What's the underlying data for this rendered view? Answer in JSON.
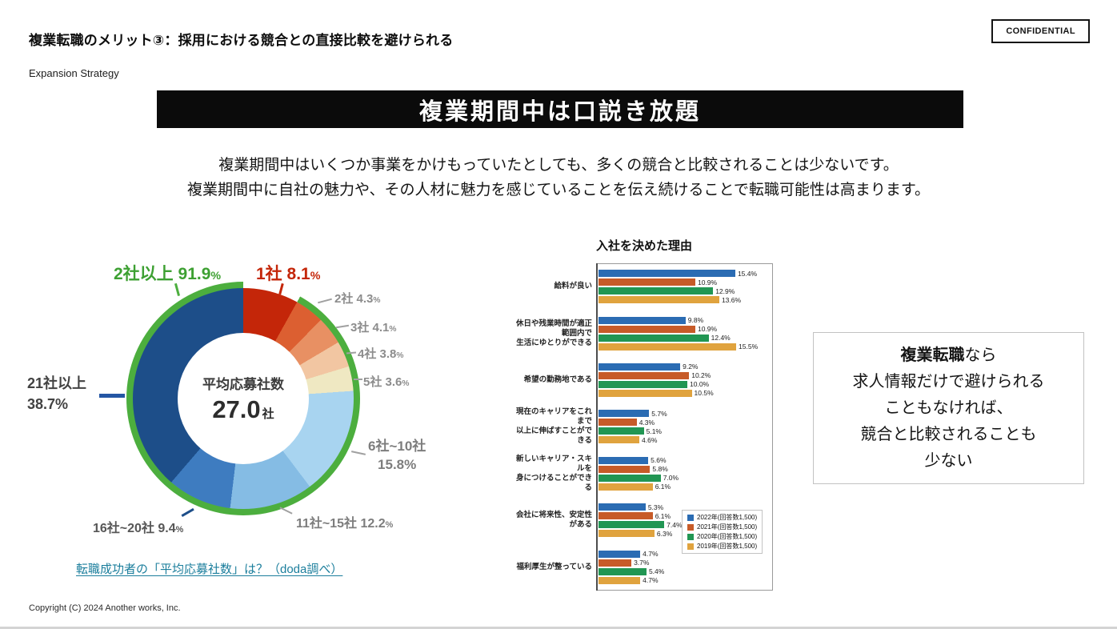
{
  "header": {
    "title": "複業転職のメリット③：採用における競合との直接比較を避けられる",
    "confidential_label": "CONFIDENTIAL",
    "subtitle": "Expansion Strategy"
  },
  "banner": {
    "text": "複業期間中は口説き放題"
  },
  "intro": {
    "line1": "複業期間中はいくつか事業をかけもっていたとしても、多くの競合と比較されることは少ないです。",
    "line2": "複業期間中に自社の魅力や、その人材に魅力を感じていることを伝え続けることで転職可能性は高まります。"
  },
  "donut": {
    "center_label": "平均応募社数",
    "center_value": "27.0",
    "center_unit": "社",
    "callouts": {
      "green": {
        "text": "2社以上 91.9",
        "unit": "%"
      },
      "red": {
        "text": "1社 8.1",
        "unit": "%"
      },
      "c2": {
        "text": "2社 4.3",
        "unit": "%"
      },
      "c3": {
        "text": "3社 4.1",
        "unit": "%"
      },
      "c4": {
        "text": "4社 3.8",
        "unit": "%"
      },
      "c5": {
        "text": "5社 3.6",
        "unit": "%"
      },
      "c6_10_line1": "6社~10社",
      "c6_10_line2": "15.8%",
      "c11_15": {
        "text": "11社~15社 12.2",
        "unit": "%"
      },
      "c16_20": {
        "text": "16社~20社 9.4",
        "unit": "%"
      },
      "c21_line1": "21社以上",
      "c21_line2": "38.7%"
    },
    "source_link": "転職成功者の「平均応募社数」は？（doda調べ）"
  },
  "callout_box": {
    "line1_bold": "複業転職",
    "line1_rest": "なら",
    "line2": "求人情報だけで避けられる",
    "line3": "こともなければ、",
    "line4": "競合と比較されることも",
    "line5": "少ない"
  },
  "footer": {
    "copyright": "Copyright (C) 2024 Another works, Inc."
  },
  "chart_data": [
    {
      "type": "pie",
      "title": "平均応募社数 27.0社",
      "labels": [
        "1社",
        "2社",
        "3社",
        "4社",
        "5社",
        "6社~10社",
        "11社~15社",
        "16社~20社",
        "21社以上"
      ],
      "values": [
        8.1,
        4.3,
        4.1,
        3.8,
        3.6,
        15.8,
        12.2,
        9.4,
        38.7
      ],
      "colors": [
        "#c42609",
        "#dc5f31",
        "#e89063",
        "#f2c6a2",
        "#efe8c2",
        "#a8d4f0",
        "#85bce4",
        "#3e7cc0",
        "#1d4e89"
      ],
      "ring": {
        "label": "2社以上",
        "value": 91.9,
        "color": "#4cae3e"
      },
      "donut_hole": true,
      "source": "転職成功者の「平均応募社数」は？（doda調べ）"
    },
    {
      "type": "bar",
      "orientation": "horizontal",
      "title": "入社を決めた理由",
      "categories": [
        "給料が良い",
        "休日や残業時間が適正範囲内で\n生活にゆとりができる",
        "希望の勤務地である",
        "現在のキャリアをこれまで\n以上に伸ばすことができる",
        "新しいキャリア・スキルを\n身につけることができる",
        "会社に将来性、安定性がある",
        "福利厚生が整っている"
      ],
      "series": [
        {
          "name": "2022年(回答数1,500)",
          "color": "#2b6cb3",
          "values": [
            15.4,
            9.8,
            9.2,
            5.7,
            5.6,
            5.3,
            4.7
          ]
        },
        {
          "name": "2021年(回答数1,500)",
          "color": "#c75b28",
          "values": [
            10.9,
            10.9,
            10.2,
            4.3,
            5.8,
            6.1,
            3.7
          ]
        },
        {
          "name": "2020年(回答数1,500)",
          "color": "#219653",
          "values": [
            12.9,
            12.4,
            10.0,
            5.1,
            7.0,
            7.4,
            5.4
          ]
        },
        {
          "name": "2019年(回答数1,500)",
          "color": "#e0a33e",
          "values": [
            13.6,
            15.5,
            10.5,
            4.6,
            6.1,
            6.3,
            4.7
          ]
        }
      ],
      "xlim": [
        0,
        20
      ],
      "value_labels": true,
      "legend_position": "inside-bottom-right",
      "grid": false
    }
  ]
}
